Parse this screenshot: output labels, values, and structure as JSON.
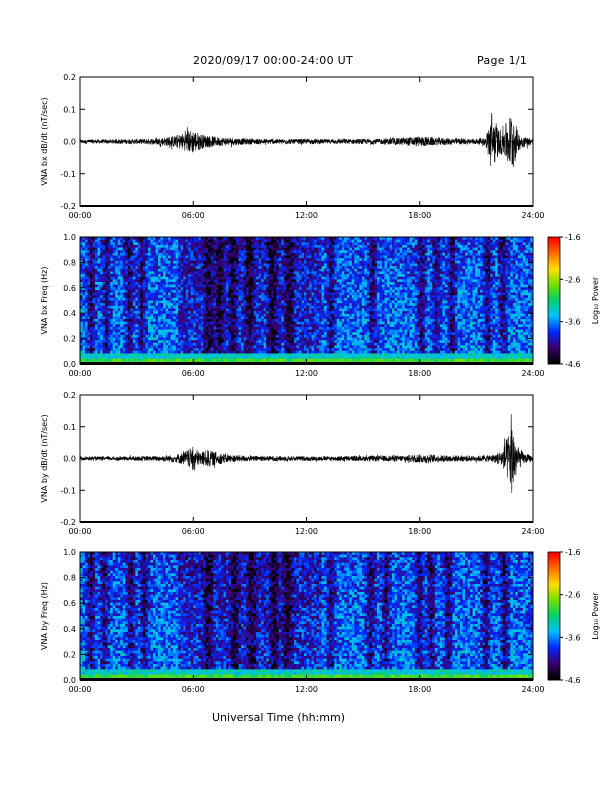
{
  "header": {
    "title": "2020/09/17  00:00-24:00 UT",
    "page": "Page 1/1"
  },
  "footer": {
    "xlabel": "Universal Time (hh:mm)"
  },
  "chart_data": [
    {
      "type": "line",
      "ylabel": "VNA bx dB/dt (nT/sec)",
      "ylim": [
        -0.2,
        0.2
      ],
      "yticks": [
        "0.2",
        "0.1",
        "0.0",
        "-0.1",
        "-0.2"
      ],
      "xticks": [
        "00:00",
        "06:00",
        "12:00",
        "18:00",
        "24:00"
      ],
      "xlim": [
        "00:00",
        "24:00"
      ],
      "series": [
        {
          "x": [
            0,
            1,
            2,
            3,
            4,
            5,
            5.5,
            5.8,
            6.0,
            6.2,
            6.6,
            7.2,
            8,
            9,
            10,
            11,
            12,
            13,
            14,
            15,
            16,
            17,
            18,
            19,
            20,
            21,
            21.5,
            21.8,
            22.2,
            22.6,
            22.9,
            23.2,
            23.6,
            24
          ],
          "amp": [
            0.006,
            0.006,
            0.007,
            0.008,
            0.01,
            0.018,
            0.028,
            0.035,
            0.038,
            0.03,
            0.02,
            0.015,
            0.012,
            0.009,
            0.008,
            0.008,
            0.008,
            0.007,
            0.008,
            0.008,
            0.009,
            0.012,
            0.016,
            0.012,
            0.01,
            0.009,
            0.011,
            0.1,
            0.035,
            0.06,
            0.1,
            0.03,
            0.015,
            0.009
          ],
          "values": [
            0.0,
            0.0,
            0.0,
            0.0,
            0.0,
            0.0,
            0.0,
            0.0,
            0.0,
            0.0,
            0.0,
            0.0,
            0.0,
            0.0,
            0.0,
            0.0,
            0.0,
            0.0,
            0.0,
            0.0,
            0.0,
            0.0,
            0.0,
            0.0,
            0.0,
            0.0,
            0.0,
            0.0,
            0.0,
            0.0,
            0.0,
            0.0,
            0.0,
            0.0
          ]
        }
      ]
    },
    {
      "type": "heatmap",
      "ylabel": "VNA bx Freq (Hz)",
      "ylim": [
        0.0,
        1.0
      ],
      "yticks": [
        "1.0",
        "0.8",
        "0.6",
        "0.4",
        "0.2",
        "0.0"
      ],
      "xticks": [
        "00:00",
        "06:00",
        "12:00",
        "18:00",
        "24:00"
      ],
      "colorbar": {
        "label": "Log₁₀ Power",
        "ticks": [
          "-1.6",
          "-2.6",
          "-3.6",
          "-4.6"
        ],
        "range": [
          -4.6,
          -1.6
        ],
        "colors": [
          "#000000",
          "#3a0072",
          "#0028ff",
          "#00bfff",
          "#00d070",
          "#70e000",
          "#ffe000",
          "#ff7000",
          "#ff0000"
        ]
      },
      "dark_bands_hours": [
        0.6,
        1.4,
        2.6,
        3.3,
        6.8,
        7.4,
        8.1,
        9.0,
        10.2,
        11.1,
        13.3,
        15.5,
        18.1,
        18.9,
        19.7,
        21.6,
        22.4
      ]
    },
    {
      "type": "line",
      "ylabel": "VNA by dB/dt (nT/sec)",
      "ylim": [
        -0.2,
        0.2
      ],
      "yticks": [
        "0.2",
        "0.1",
        "0.0",
        "-0.1",
        "-0.2"
      ],
      "xticks": [
        "00:00",
        "06:00",
        "12:00",
        "18:00",
        "24:00"
      ],
      "xlim": [
        "00:00",
        "24:00"
      ],
      "series": [
        {
          "x": [
            0,
            1,
            2,
            3,
            4,
            5,
            5.5,
            5.8,
            6.0,
            6.3,
            6.8,
            7.2,
            8,
            9,
            10,
            11,
            12,
            13,
            14,
            15,
            16,
            17,
            18,
            19,
            20,
            21,
            21.5,
            22,
            22.4,
            22.7,
            22.9,
            23.2,
            23.6,
            24
          ],
          "amp": [
            0.006,
            0.006,
            0.006,
            0.007,
            0.008,
            0.012,
            0.02,
            0.03,
            0.038,
            0.022,
            0.028,
            0.02,
            0.012,
            0.009,
            0.008,
            0.008,
            0.007,
            0.007,
            0.008,
            0.008,
            0.009,
            0.01,
            0.014,
            0.011,
            0.01,
            0.009,
            0.01,
            0.014,
            0.03,
            0.08,
            0.12,
            0.035,
            0.015,
            0.009
          ],
          "values": [
            0.0,
            0.0,
            0.0,
            0.0,
            0.0,
            0.0,
            0.0,
            0.0,
            0.0,
            0.0,
            0.0,
            0.0,
            0.0,
            0.0,
            0.0,
            0.0,
            0.0,
            0.0,
            0.0,
            0.0,
            0.0,
            0.0,
            0.0,
            0.0,
            0.0,
            0.0,
            0.0,
            0.0,
            0.0,
            0.0,
            0.0,
            0.0,
            0.0,
            0.0
          ]
        }
      ]
    },
    {
      "type": "heatmap",
      "ylabel": "VNA by Freq (Hz)",
      "ylim": [
        0.0,
        1.0
      ],
      "yticks": [
        "1.0",
        "0.8",
        "0.6",
        "0.4",
        "0.2",
        "0.0"
      ],
      "xticks": [
        "00:00",
        "06:00",
        "12:00",
        "18:00",
        "24:00"
      ],
      "colorbar": {
        "label": "Log₁₀ Power",
        "ticks": [
          "-1.6",
          "-2.6",
          "-3.6",
          "-4.6"
        ],
        "range": [
          -4.6,
          -1.6
        ],
        "colors": [
          "#000000",
          "#3a0072",
          "#0028ff",
          "#00bfff",
          "#00d070",
          "#70e000",
          "#ffe000",
          "#ff7000",
          "#ff0000"
        ]
      },
      "dark_bands_hours": [
        0.6,
        1.3,
        2.7,
        3.4,
        6.8,
        8.2,
        9.1,
        10.3,
        11.0,
        13.3,
        15.4,
        16.2,
        18.0,
        18.6,
        19.5,
        21.5,
        22.5
      ]
    }
  ]
}
